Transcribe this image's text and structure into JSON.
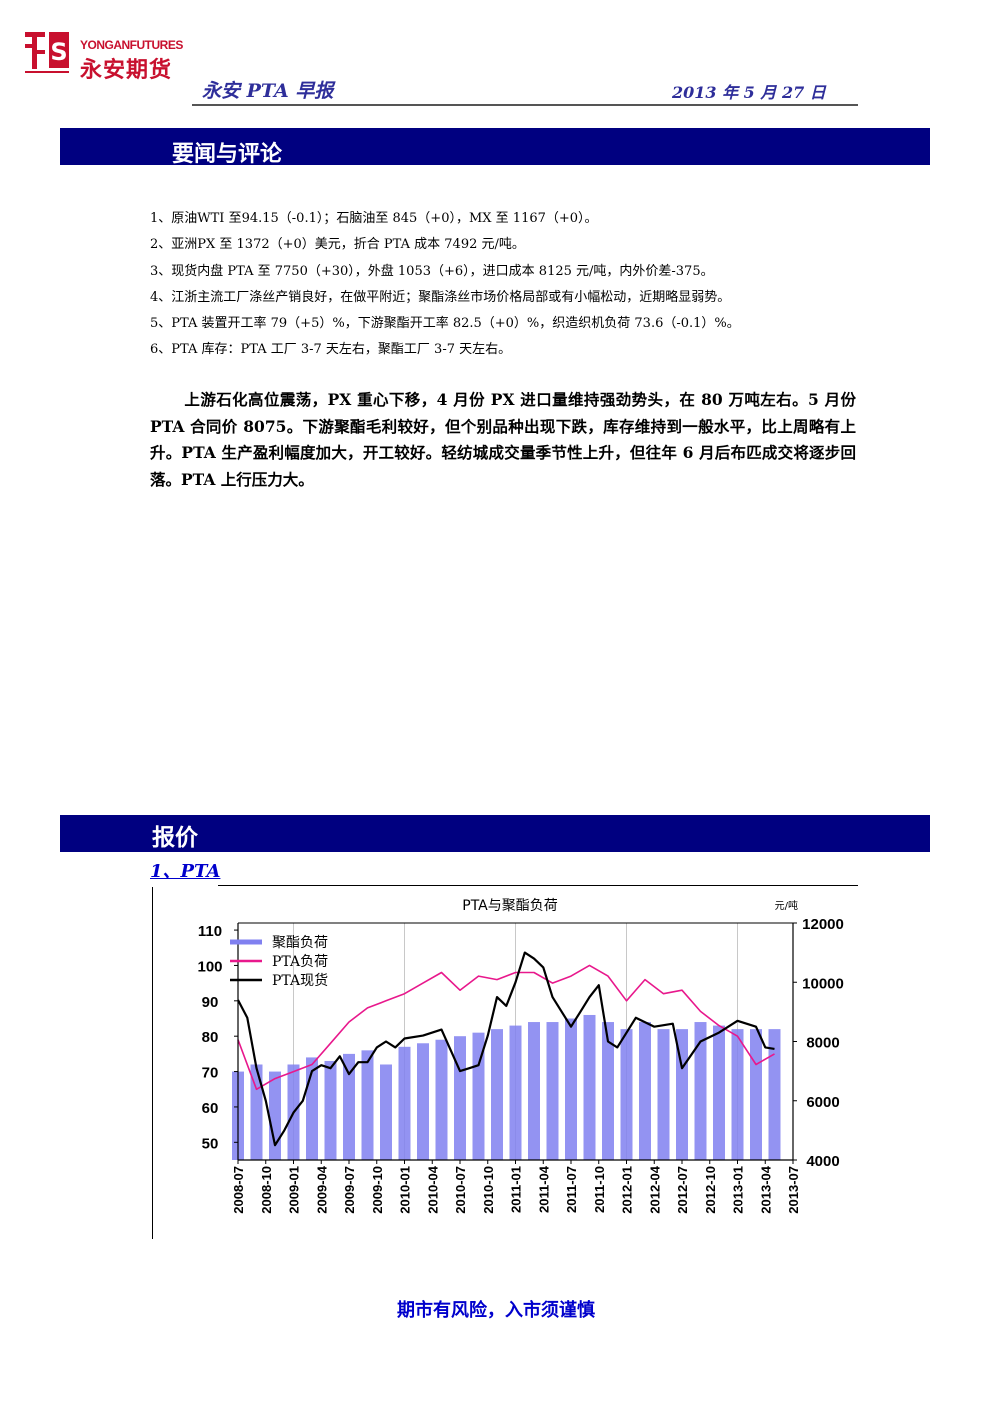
{
  "header": {
    "logo_en": "YONGANFUTURES",
    "logo_cn": "永安期货",
    "report_title": "永安 PTA 早报",
    "date": "2013 年 5 月 27 日"
  },
  "section_news": {
    "heading": "要闻与评论",
    "items": [
      "1、原油WTI 至94.15（-0.1）；石脑油至 845（+0），MX 至 1167（+0）。",
      "2、亚洲PX 至 1372（+0）美元，折合 PTA 成本 7492 元/吨。",
      "3、现货内盘 PTA 至 7750（+30），外盘 1053（+6），进口成本 8125 元/吨，内外价差-375。",
      "4、江浙主流工厂涤丝产销良好，在做平附近；聚酯涤丝市场价格局部或有小幅松动，近期略显弱势。",
      "5、PTA 装置开工率 79（+5）%，下游聚酯开工率 82.5（+0）%，织造织机负荷 73.6（-0.1）%。",
      "6、PTA 库存：PTA 工厂 3-7 天左右，聚酯工厂 3-7 天左右。"
    ],
    "commentary": "上游石化高位震荡，PX 重心下移，4 月份 PX 进口量维持强劲势头，在 80 万吨左右。5 月份 PTA 合同价 8075。下游聚酯毛利较好，但个别品种出现下跌，库存维持到一般水平，比上周略有上升。PTA 生产盈利幅度加大，开工较好。轻纺城成交量季节性上升，但往年 6 月后布匹成交将逐步回落。PTA 上行压力大。"
  },
  "section_price": {
    "heading": "报价",
    "subheading": "1、PTA"
  },
  "chart_data": {
    "type": "line",
    "title": "PTA与聚酯负荷",
    "y2_unit": "元/吨",
    "ylim": [
      45,
      112
    ],
    "y2lim": [
      4000,
      12000
    ],
    "yticks": [
      50,
      60,
      70,
      80,
      90,
      100,
      110
    ],
    "y2ticks": [
      4000,
      6000,
      8000,
      10000,
      12000
    ],
    "x_ticks": [
      "2008-07",
      "2008-10",
      "2009-01",
      "2009-04",
      "2009-07",
      "2009-10",
      "2010-01",
      "2010-04",
      "2010-07",
      "2010-10",
      "2011-01",
      "2011-04",
      "2011-07",
      "2011-10",
      "2012-01",
      "2012-04",
      "2012-07",
      "2012-10",
      "2013-01",
      "2013-04",
      "2013-07"
    ],
    "legend_position": "top-left",
    "colors": {
      "polyester": "#8080f0",
      "pta_load": "#e8188c",
      "pta_spot": "#000000"
    },
    "series": [
      {
        "name": "聚酯负荷",
        "kind": "bar",
        "axis": "left",
        "x": [
          "2008-07",
          "2008-09",
          "2008-11",
          "2009-01",
          "2009-03",
          "2009-05",
          "2009-07",
          "2009-09",
          "2009-11",
          "2010-01",
          "2010-03",
          "2010-05",
          "2010-07",
          "2010-09",
          "2010-11",
          "2011-01",
          "2011-03",
          "2011-05",
          "2011-07",
          "2011-09",
          "2011-11",
          "2012-01",
          "2012-03",
          "2012-05",
          "2012-07",
          "2012-09",
          "2012-11",
          "2013-01",
          "2013-03",
          "2013-05"
        ],
        "values": [
          70,
          72,
          70,
          72,
          74,
          73,
          75,
          76,
          72,
          77,
          78,
          79,
          80,
          81,
          82,
          83,
          84,
          84,
          85,
          86,
          84,
          82,
          84,
          82,
          82,
          84,
          83,
          82,
          82,
          82
        ]
      },
      {
        "name": "PTA负荷",
        "kind": "line",
        "axis": "left",
        "x": [
          "2008-07",
          "2008-09",
          "2008-11",
          "2009-01",
          "2009-03",
          "2009-05",
          "2009-07",
          "2009-09",
          "2009-11",
          "2010-01",
          "2010-03",
          "2010-05",
          "2010-07",
          "2010-09",
          "2010-11",
          "2011-01",
          "2011-03",
          "2011-05",
          "2011-07",
          "2011-09",
          "2011-11",
          "2012-01",
          "2012-03",
          "2012-05",
          "2012-07",
          "2012-09",
          "2012-11",
          "2013-01",
          "2013-03",
          "2013-05"
        ],
        "values": [
          79,
          65,
          68,
          70,
          72,
          78,
          84,
          88,
          90,
          92,
          95,
          98,
          93,
          97,
          96,
          98,
          98,
          95,
          97,
          100,
          97,
          90,
          96,
          92,
          93,
          87,
          83,
          80,
          72,
          75
        ]
      },
      {
        "name": "PTA现货",
        "kind": "line",
        "axis": "right",
        "x": [
          "2008-07",
          "2008-08",
          "2008-09",
          "2008-10",
          "2008-11",
          "2008-12",
          "2009-01",
          "2009-02",
          "2009-03",
          "2009-04",
          "2009-05",
          "2009-06",
          "2009-07",
          "2009-08",
          "2009-09",
          "2009-10",
          "2009-11",
          "2009-12",
          "2010-01",
          "2010-03",
          "2010-05",
          "2010-07",
          "2010-08",
          "2010-09",
          "2010-10",
          "2010-11",
          "2010-12",
          "2011-01",
          "2011-02",
          "2011-03",
          "2011-04",
          "2011-05",
          "2011-06",
          "2011-07",
          "2011-08",
          "2011-09",
          "2011-10",
          "2011-11",
          "2011-12",
          "2012-02",
          "2012-04",
          "2012-06",
          "2012-07",
          "2012-09",
          "2012-11",
          "2013-01",
          "2013-03",
          "2013-04",
          "2013-05"
        ],
        "values": [
          9400,
          8800,
          7100,
          6000,
          4500,
          5000,
          5600,
          6000,
          7000,
          7200,
          7100,
          7500,
          6900,
          7300,
          7300,
          7800,
          8000,
          7800,
          8100,
          8200,
          8400,
          7000,
          7100,
          7200,
          8200,
          9500,
          9200,
          10000,
          11000,
          10800,
          10500,
          9500,
          9000,
          8500,
          9000,
          9500,
          9900,
          8000,
          7800,
          8800,
          8500,
          8600,
          7100,
          8000,
          8300,
          8700,
          8500,
          7800,
          7750
        ]
      }
    ]
  },
  "footer": {
    "disclaimer": "期市有风险，入市须谨慎"
  }
}
